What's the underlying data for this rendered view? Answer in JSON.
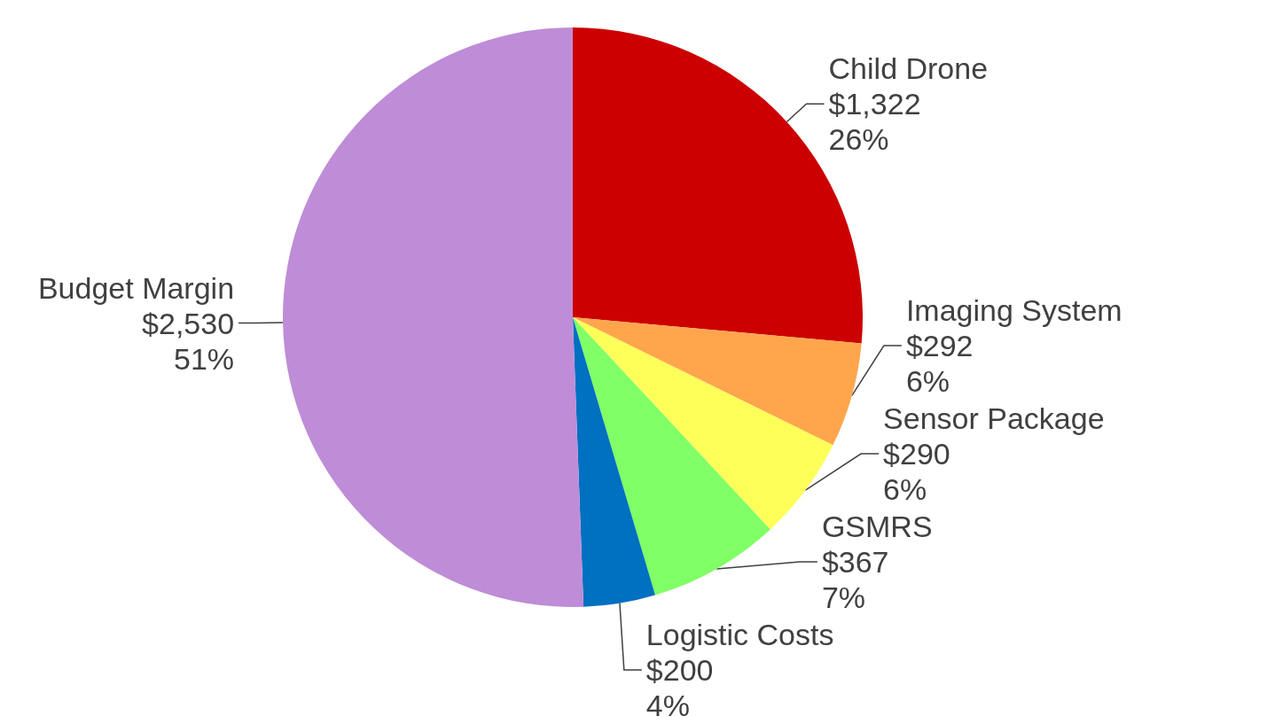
{
  "chart_data": {
    "type": "pie",
    "categories": [
      "Child Drone",
      "Imaging System",
      "Sensor Package",
      "GSMRS",
      "Logistic Costs",
      "Budget Margin"
    ],
    "values": [
      1322,
      292,
      290,
      367,
      200,
      2530
    ],
    "value_labels": [
      "$1,322\n26%",
      "$292\n6%",
      "$290\n6%",
      "$367\n7%",
      "$200\n4%",
      "$2,530\n51%"
    ],
    "colors": [
      "#cc0000",
      "#ffa64d",
      "#ffff59",
      "#80ff66",
      "#0070c0",
      "#bf8cd7"
    ],
    "legend": false
  }
}
